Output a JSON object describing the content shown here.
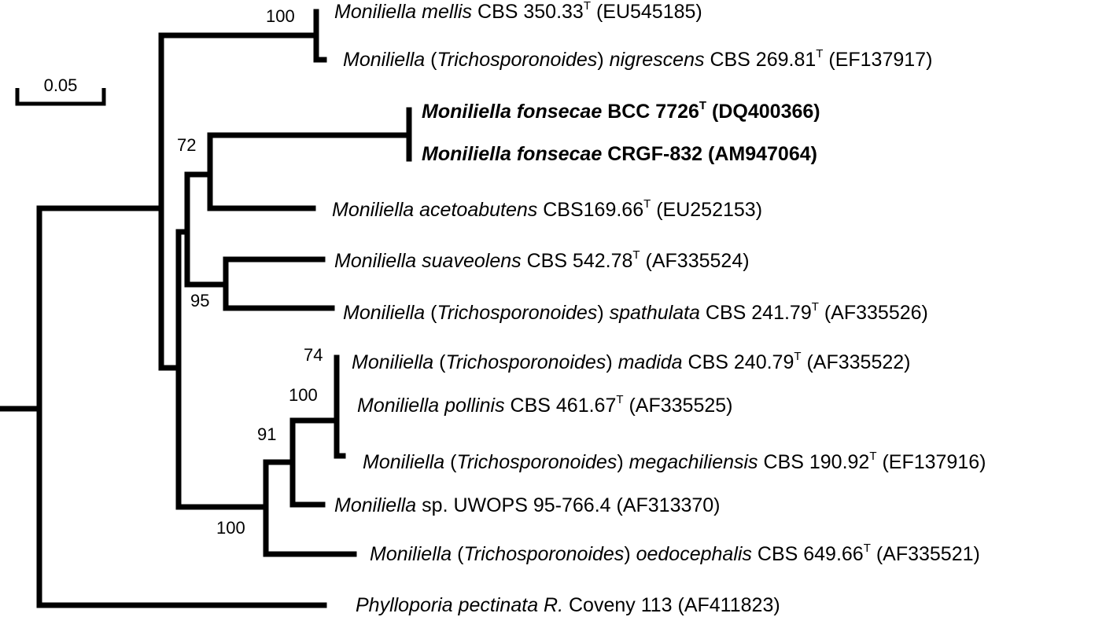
{
  "scale_bar": {
    "label": "0.05"
  },
  "support_values": [
    {
      "id": "mellis-nigrescens",
      "value": "100"
    },
    {
      "id": "fonsecae-acetoabutens",
      "value": "72"
    },
    {
      "id": "suaveolens-spathulata",
      "value": "95"
    },
    {
      "id": "madida-pollinis",
      "value": "74"
    },
    {
      "id": "madida-megachiliensis",
      "value": "100"
    },
    {
      "id": "madida-uwops",
      "value": "91"
    },
    {
      "id": "madida-oedocephalis",
      "value": "100"
    }
  ],
  "taxa": [
    {
      "id": "mellis",
      "bold": false,
      "parts": [
        {
          "t": "Moniliella mellis",
          "i": true
        },
        {
          "t": " CBS 350.33"
        },
        {
          "t": "T",
          "sup": true
        },
        {
          "t": " (EU545185)"
        }
      ]
    },
    {
      "id": "nigrescens",
      "bold": false,
      "parts": [
        {
          "t": "Moniliella",
          "i": true
        },
        {
          "t": " ("
        },
        {
          "t": "Trichosporonoides",
          "i": true
        },
        {
          "t": ") "
        },
        {
          "t": "nigrescens",
          "i": true
        },
        {
          "t": " CBS 269.81"
        },
        {
          "t": "T",
          "sup": true
        },
        {
          "t": " (EF137917)"
        }
      ]
    },
    {
      "id": "fonsecae-bcc",
      "bold": true,
      "parts": [
        {
          "t": "Moniliella fonsecae",
          "i": true
        },
        {
          "t": " BCC 7726"
        },
        {
          "t": "T",
          "sup": true
        },
        {
          "t": " (DQ400366)"
        }
      ]
    },
    {
      "id": "fonsecae-crgf",
      "bold": true,
      "parts": [
        {
          "t": "Moniliella fonsecae",
          "i": true
        },
        {
          "t": " CRGF-832 (AM947064)"
        }
      ]
    },
    {
      "id": "acetoabutens",
      "bold": false,
      "parts": [
        {
          "t": "Moniliella acetoabutens",
          "i": true
        },
        {
          "t": " CBS169.66"
        },
        {
          "t": "T",
          "sup": true
        },
        {
          "t": " (EU252153)"
        }
      ]
    },
    {
      "id": "suaveolens",
      "bold": false,
      "parts": [
        {
          "t": "Moniliella suaveolens",
          "i": true
        },
        {
          "t": " CBS 542.78"
        },
        {
          "t": "T",
          "sup": true
        },
        {
          "t": " (AF335524)"
        }
      ]
    },
    {
      "id": "spathulata",
      "bold": false,
      "parts": [
        {
          "t": "Moniliella",
          "i": true
        },
        {
          "t": " ("
        },
        {
          "t": "Trichosporonoides",
          "i": true
        },
        {
          "t": ") "
        },
        {
          "t": "spathulata",
          "i": true
        },
        {
          "t": " CBS 241.79"
        },
        {
          "t": "T",
          "sup": true
        },
        {
          "t": " (AF335526)"
        }
      ]
    },
    {
      "id": "madida",
      "bold": false,
      "parts": [
        {
          "t": "Moniliella",
          "i": true
        },
        {
          "t": " ("
        },
        {
          "t": "Trichosporonoides",
          "i": true
        },
        {
          "t": ") "
        },
        {
          "t": "madida",
          "i": true
        },
        {
          "t": " CBS 240.79"
        },
        {
          "t": "T",
          "sup": true
        },
        {
          "t": " (AF335522)"
        }
      ]
    },
    {
      "id": "pollinis",
      "bold": false,
      "parts": [
        {
          "t": "Moniliella pollinis",
          "i": true
        },
        {
          "t": " CBS 461.67"
        },
        {
          "t": "T",
          "sup": true
        },
        {
          "t": " (AF335525)"
        }
      ]
    },
    {
      "id": "megachiliensis",
      "bold": false,
      "parts": [
        {
          "t": "Moniliella",
          "i": true
        },
        {
          "t": " ("
        },
        {
          "t": "Trichosporonoides",
          "i": true
        },
        {
          "t": ") "
        },
        {
          "t": "megachiliensis",
          "i": true
        },
        {
          "t": " CBS 190.92"
        },
        {
          "t": "T",
          "sup": true
        },
        {
          "t": " (EF137916)"
        }
      ]
    },
    {
      "id": "uwops",
      "bold": false,
      "parts": [
        {
          "t": "Moniliella",
          "i": true
        },
        {
          "t": " sp. UWOPS 95-766.4 (AF313370)"
        }
      ]
    },
    {
      "id": "oedocephalis",
      "bold": false,
      "parts": [
        {
          "t": "Moniliella",
          "i": true
        },
        {
          "t": " ("
        },
        {
          "t": "Trichosporonoides",
          "i": true
        },
        {
          "t": ") "
        },
        {
          "t": "oedocephalis",
          "i": true
        },
        {
          "t": " CBS 649.66"
        },
        {
          "t": "T",
          "sup": true
        },
        {
          "t": " (AF335521)"
        }
      ]
    },
    {
      "id": "phylloporia",
      "bold": false,
      "parts": [
        {
          "t": "Phylloporia pectinata R.",
          "i": true
        },
        {
          "t": " Coveny 113 (AF411823)"
        }
      ]
    }
  ]
}
